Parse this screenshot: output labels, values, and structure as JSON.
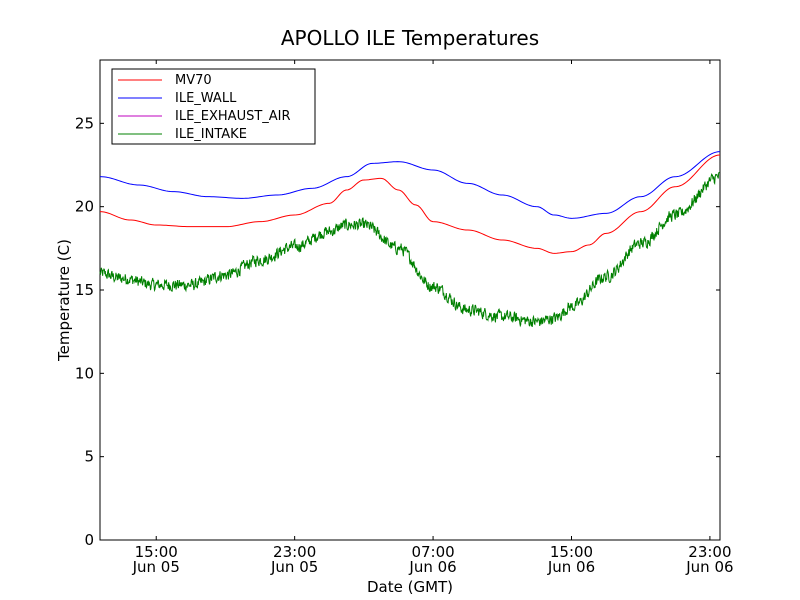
{
  "chart_data": {
    "type": "line",
    "title": "APOLLO ILE Temperatures",
    "xlabel": "Date (GMT)",
    "ylabel": "Temperature (C)",
    "x_range": [
      "2008-06-05 11:45",
      "2008-06-06 23:35"
    ],
    "ylim": [
      0,
      28.8
    ],
    "yticks": [
      0,
      5,
      10,
      15,
      20,
      25
    ],
    "xticks": [
      {
        "at": "2008-06-05 15:00",
        "lines": [
          "15:00",
          "Jun 05"
        ]
      },
      {
        "at": "2008-06-05 23:00",
        "lines": [
          "23:00",
          "Jun 05"
        ]
      },
      {
        "at": "2008-06-06 07:00",
        "lines": [
          "07:00",
          "Jun 06"
        ]
      },
      {
        "at": "2008-06-06 15:00",
        "lines": [
          "15:00",
          "Jun 06"
        ]
      },
      {
        "at": "2008-06-06 23:00",
        "lines": [
          "23:00",
          "Jun 06"
        ]
      }
    ],
    "grid": false,
    "legend": "top-left",
    "series": [
      {
        "name": "MV70",
        "color": "#ff0000",
        "x": [
          "2008-06-05 11:45",
          "2008-06-05 13:30",
          "2008-06-05 15:00",
          "2008-06-05 17:00",
          "2008-06-05 19:00",
          "2008-06-05 21:00",
          "2008-06-05 23:00",
          "2008-06-06 01:00",
          "2008-06-06 02:00",
          "2008-06-06 03:00",
          "2008-06-06 04:00",
          "2008-06-06 05:00",
          "2008-06-06 06:00",
          "2008-06-06 07:00",
          "2008-06-06 09:00",
          "2008-06-06 11:00",
          "2008-06-06 13:00",
          "2008-06-06 14:00",
          "2008-06-06 15:00",
          "2008-06-06 16:00",
          "2008-06-06 17:00",
          "2008-06-06 19:00",
          "2008-06-06 21:00",
          "2008-06-06 23:35"
        ],
        "y": [
          19.7,
          19.2,
          18.9,
          18.8,
          18.8,
          19.1,
          19.5,
          20.2,
          21.0,
          21.6,
          21.7,
          21.0,
          20.1,
          19.1,
          18.6,
          18.0,
          17.5,
          17.2,
          17.3,
          17.7,
          18.4,
          19.7,
          21.2,
          23.1
        ]
      },
      {
        "name": "ILE_WALL",
        "color": "#0000ff",
        "x": [
          "2008-06-05 11:45",
          "2008-06-05 14:00",
          "2008-06-05 16:00",
          "2008-06-05 18:00",
          "2008-06-05 20:00",
          "2008-06-05 22:00",
          "2008-06-06 00:00",
          "2008-06-06 02:00",
          "2008-06-06 03:30",
          "2008-06-06 05:00",
          "2008-06-06 07:00",
          "2008-06-06 09:00",
          "2008-06-06 11:00",
          "2008-06-06 13:00",
          "2008-06-06 14:00",
          "2008-06-06 15:00",
          "2008-06-06 17:00",
          "2008-06-06 19:00",
          "2008-06-06 21:00",
          "2008-06-06 23:35"
        ],
        "y": [
          21.8,
          21.3,
          20.9,
          20.6,
          20.5,
          20.7,
          21.1,
          21.8,
          22.6,
          22.7,
          22.2,
          21.4,
          20.7,
          20.0,
          19.5,
          19.3,
          19.6,
          20.6,
          21.8,
          23.3
        ]
      },
      {
        "name": "ILE_EXHAUST_AIR",
        "color": "#bf00bf",
        "x": [],
        "y": []
      },
      {
        "name": "ILE_INTAKE",
        "color": "#008000",
        "noise": 0.32,
        "x": [
          "2008-06-05 11:45",
          "2008-06-05 13:00",
          "2008-06-05 15:00",
          "2008-06-05 17:00",
          "2008-06-05 19:00",
          "2008-06-05 21:00",
          "2008-06-05 23:00",
          "2008-06-06 01:00",
          "2008-06-06 02:00",
          "2008-06-06 03:00",
          "2008-06-06 05:00",
          "2008-06-06 07:00",
          "2008-06-06 09:00",
          "2008-06-06 11:00",
          "2008-06-06 13:00",
          "2008-06-06 14:00",
          "2008-06-06 15:00",
          "2008-06-06 17:00",
          "2008-06-06 19:00",
          "2008-06-06 21:00",
          "2008-06-06 23:35"
        ],
        "y": [
          16.0,
          15.7,
          15.3,
          15.3,
          15.9,
          16.8,
          17.6,
          18.5,
          18.9,
          18.9,
          17.5,
          15.2,
          13.8,
          13.4,
          13.1,
          13.3,
          14.0,
          15.8,
          17.8,
          19.5,
          21.8
        ]
      }
    ]
  }
}
